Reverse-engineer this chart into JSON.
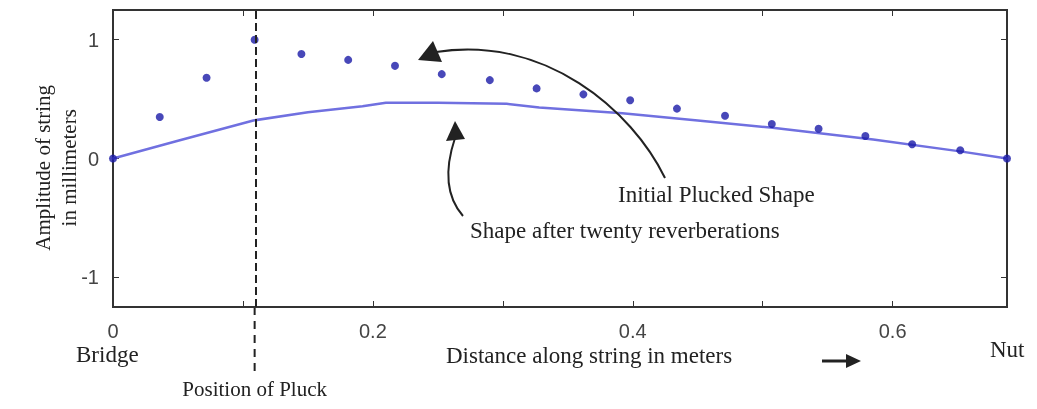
{
  "chart_data": {
    "type": "scatter",
    "xlabel": "Distance along string in meters",
    "ylabel": "Amplitude of string\nin millimeters",
    "xlim": [
      0,
      0.688
    ],
    "xticks": [
      0,
      {
        "value": 0.1,
        "label": null
      },
      0.2,
      {
        "value": 0.3,
        "label": null
      },
      0.4,
      {
        "value": 0.5,
        "label": null
      },
      0.6
    ],
    "ylim": [
      -1.25,
      1.25
    ],
    "yticks": [
      -1,
      0,
      1
    ],
    "grid": false,
    "marker": "circle",
    "series": [
      {
        "color": "#1a1aa8",
        "x": [
          0,
          0.036,
          0.072,
          0.109,
          0.145,
          0.181,
          0.217,
          0.253,
          0.29,
          0.326,
          0.362,
          0.398,
          0.434,
          0.471,
          0.507,
          0.543,
          0.579,
          0.615,
          0.652,
          0.688
        ],
        "values": [
          0,
          0.35,
          0.68,
          1,
          0.88,
          0.83,
          0.78,
          0.71,
          0.66,
          0.59,
          0.54,
          0.49,
          0.42,
          0.36,
          0.29,
          0.25,
          0.19,
          0.12,
          0.07,
          0
        ]
      },
      {
        "type": "line",
        "color": "#7070e0",
        "marker": "none",
        "line_style": "solid",
        "x": [
          0,
          0.05,
          0.108,
          0.15,
          0.192,
          0.21,
          0.25,
          0.303,
          0.328,
          0.392,
          0.45,
          0.506,
          0.585,
          0.652,
          0.688
        ],
        "values": [
          0,
          0.15,
          0.32,
          0.39,
          0.44,
          0.47,
          0.47,
          0.46,
          0.43,
          0.38,
          0.32,
          0.26,
          0.16,
          0.06,
          0
        ]
      }
    ],
    "ref_lines": [
      {
        "axis": "x",
        "value": 0.109,
        "label": "Position of Pluck",
        "color": "#222222",
        "line_style": "dashed"
      }
    ],
    "annotations": [
      "Bridge",
      "Nut",
      "Initial Plucked Shape",
      "Shape after twenty reverberations"
    ]
  }
}
